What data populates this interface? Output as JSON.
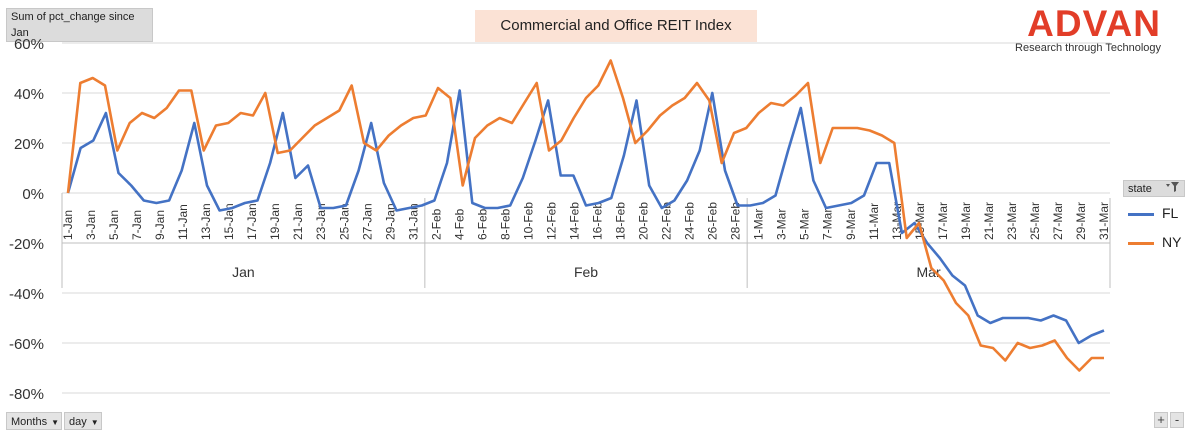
{
  "pivot": {
    "value_field": "Sum of pct_change since Jan",
    "legend_field": "state",
    "filter_icon": "filter-funnel-icon",
    "months_button": "Months",
    "day_button": "day",
    "expand_label": "+",
    "collapse_label": "-"
  },
  "brand": {
    "name": "ADVAN",
    "tagline": "Research through Technology"
  },
  "colors": {
    "FL": "#4472c4",
    "NY": "#ed7d31",
    "title_bg": "#fbe2d5",
    "brand": "#e23d28"
  },
  "chart_data": {
    "type": "line",
    "title": "Commercial and Office REIT Index",
    "ylim": [
      -80,
      60
    ],
    "yticks": [
      "-80%",
      "-60%",
      "-40%",
      "-20%",
      "0%",
      "20%",
      "40%",
      "60%"
    ],
    "grid": true,
    "legend_position": "right",
    "month_groups": [
      "Jan",
      "Feb",
      "Mar"
    ],
    "tick_labels": [
      "1-Jan",
      "3-Jan",
      "5-Jan",
      "7-Jan",
      "9-Jan",
      "11-Jan",
      "13-Jan",
      "15-Jan",
      "17-Jan",
      "19-Jan",
      "21-Jan",
      "23-Jan",
      "25-Jan",
      "27-Jan",
      "29-Jan",
      "31-Jan",
      "2-Feb",
      "4-Feb",
      "6-Feb",
      "8-Feb",
      "10-Feb",
      "12-Feb",
      "14-Feb",
      "16-Feb",
      "18-Feb",
      "20-Feb",
      "22-Feb",
      "24-Feb",
      "26-Feb",
      "28-Feb",
      "1-Mar",
      "3-Mar",
      "5-Mar",
      "7-Mar",
      "9-Mar",
      "11-Mar",
      "13-Mar",
      "15-Mar",
      "17-Mar",
      "19-Mar",
      "21-Mar",
      "23-Mar",
      "25-Mar",
      "27-Mar",
      "29-Mar",
      "31-Mar"
    ],
    "series": [
      {
        "name": "FL",
        "values": [
          0,
          18,
          21,
          32,
          8,
          3,
          -3,
          -4,
          -3,
          9,
          28,
          3,
          -7,
          -6,
          -4,
          -3,
          12,
          32,
          6,
          11,
          -6,
          -6,
          -5,
          9,
          28,
          4,
          -7,
          -6,
          -5,
          -3,
          12,
          41,
          -4,
          -6,
          -6,
          -5,
          6,
          21,
          37,
          7,
          7,
          -5,
          -4,
          -2,
          15,
          37,
          3,
          -6,
          -3,
          5,
          17,
          40,
          9,
          -5,
          -5,
          -4,
          -1,
          17,
          34,
          5,
          -6,
          -5,
          -4,
          -1,
          12,
          12,
          -16,
          -12,
          -20,
          -26,
          -33,
          -37,
          -49,
          -52,
          -50,
          -50,
          -50,
          -51,
          -49,
          -51,
          -60,
          -57,
          -55
        ],
        "color": "#4472c4"
      },
      {
        "name": "NY",
        "values": [
          0,
          44,
          46,
          43,
          17,
          28,
          32,
          30,
          34,
          41,
          41,
          17,
          27,
          28,
          32,
          31,
          40,
          16,
          17,
          22,
          27,
          30,
          33,
          43,
          20,
          17,
          23,
          27,
          30,
          31,
          42,
          38,
          3,
          22,
          27,
          30,
          28,
          36,
          44,
          17,
          21,
          30,
          38,
          43,
          53,
          38,
          20,
          25,
          31,
          35,
          38,
          44,
          37,
          12,
          24,
          26,
          32,
          36,
          35,
          39,
          44,
          12,
          26,
          26,
          26,
          25,
          23,
          20,
          -18,
          -12,
          -30,
          -35,
          -44,
          -49,
          -61,
          -62,
          -67,
          -60,
          -62,
          -61,
          -59,
          -66,
          -71,
          -66,
          -66
        ],
        "color": "#ed7d31"
      }
    ]
  }
}
